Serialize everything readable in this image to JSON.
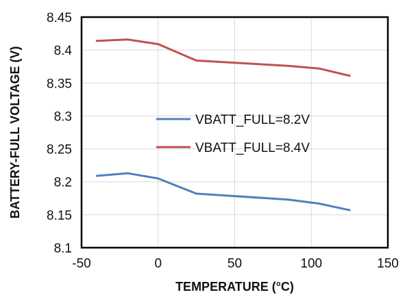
{
  "chart_data": {
    "type": "line",
    "title": "",
    "xlabel": "TEMPERATURE  (°C)",
    "ylabel": "BATTERY-FULL  VOLTAGE  (V)",
    "xlim": [
      -50,
      150
    ],
    "ylim": [
      8.1,
      8.45
    ],
    "grid": true,
    "legend_position": "center-right",
    "xticks": [
      -50,
      0,
      50,
      100,
      150
    ],
    "xtick_labels": [
      "-50",
      "0",
      "50",
      "100",
      "150"
    ],
    "yticks": [
      8.1,
      8.15,
      8.2,
      8.25,
      8.3,
      8.35,
      8.4,
      8.45
    ],
    "ytick_labels": [
      "8.1",
      "8.15",
      "8.2",
      "8.25",
      "8.3",
      "8.35",
      "8.4",
      "8.45"
    ],
    "series": [
      {
        "name": "VBATT_FULL=8.2V",
        "color": "#4f81bd",
        "x": [
          -40,
          -20,
          0,
          25,
          85,
          105,
          125
        ],
        "y": [
          8.209,
          8.213,
          8.205,
          8.182,
          8.173,
          8.167,
          8.157
        ]
      },
      {
        "name": "VBATT_FULL=8.4V",
        "color": "#c0504d",
        "x": [
          -40,
          -20,
          0,
          25,
          85,
          105,
          125
        ],
        "y": [
          8.414,
          8.416,
          8.409,
          8.384,
          8.376,
          8.372,
          8.361
        ]
      }
    ]
  }
}
